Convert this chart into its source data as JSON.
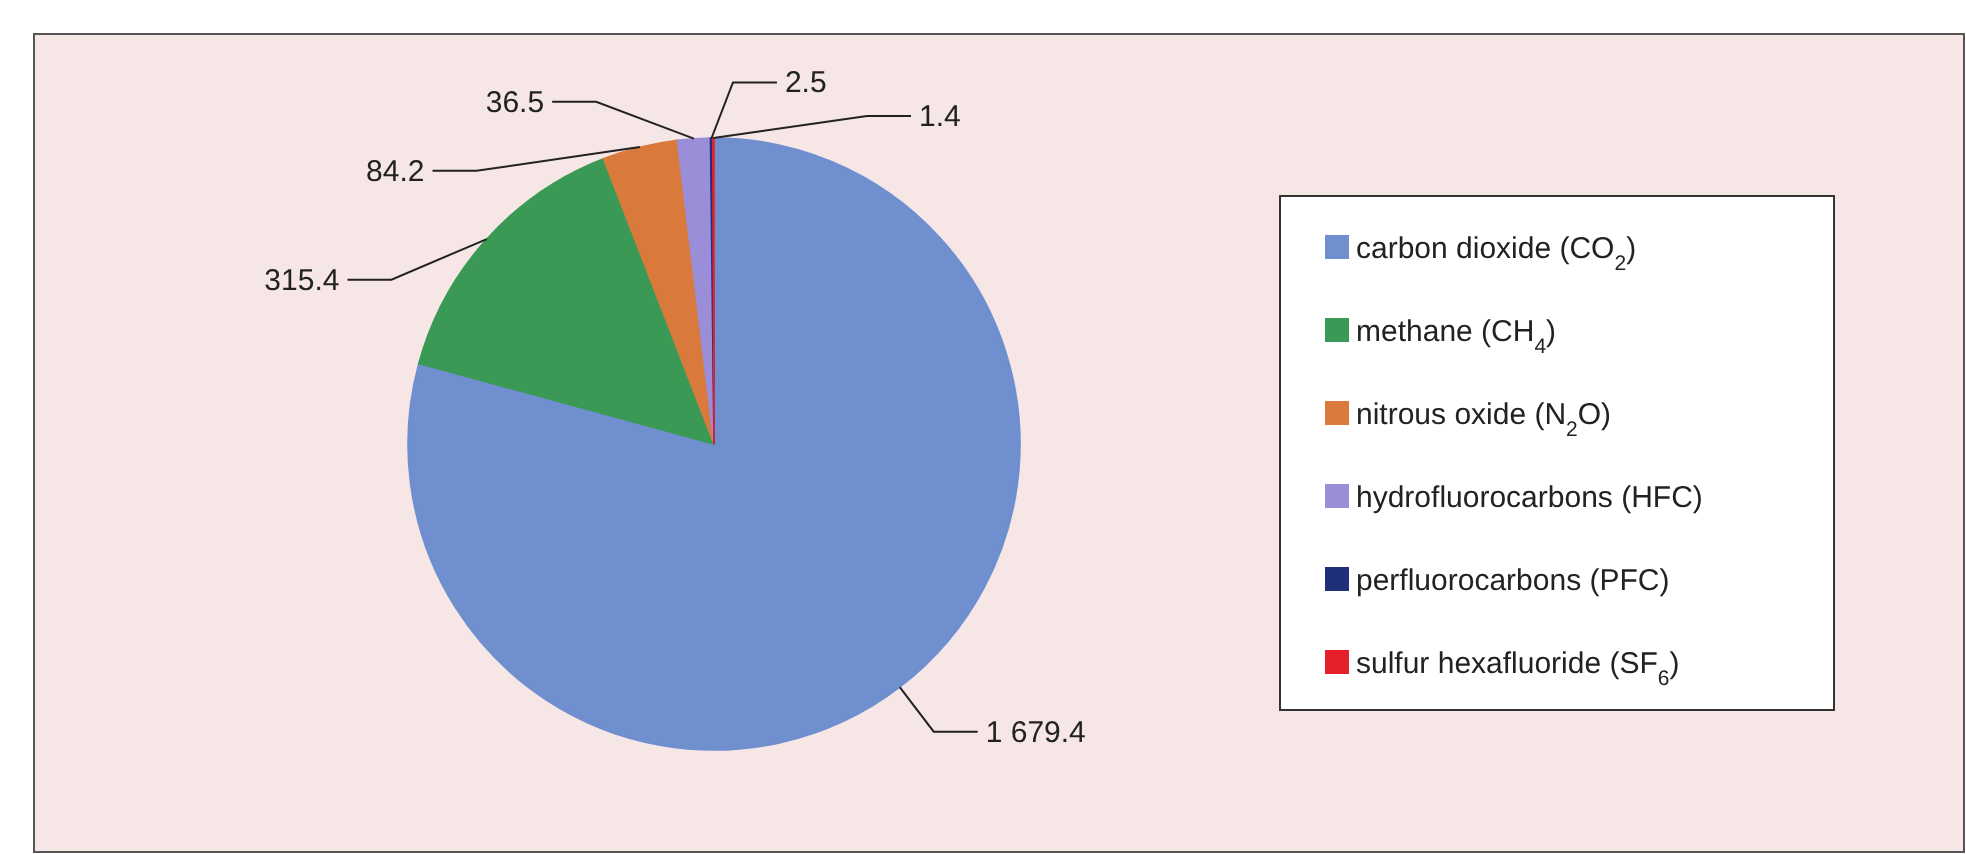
{
  "chart_data": {
    "type": "pie",
    "categories": [
      "carbon dioxide (CO$_{2}$)",
      "methane (CH$_{4}$)",
      "nitrous oxide (N$_{2}$O)",
      "hydrofluorocarbons (HFC)",
      "perfluorocarbons (PFC)",
      "sulfur hexafluoride (SF$_{6}$)"
    ],
    "values": [
      1679.4,
      315.4,
      84.2,
      36.5,
      2.5,
      1.4
    ],
    "value_labels": [
      "1 679.4",
      "315.4",
      "84.2",
      "36.5",
      "2.5",
      "1.4"
    ],
    "colors": [
      "#6f8fcf",
      "#3a9a55",
      "#d97a3c",
      "#9a8ed8",
      "#1f2f7a",
      "#e5202a"
    ],
    "legend": "right"
  }
}
